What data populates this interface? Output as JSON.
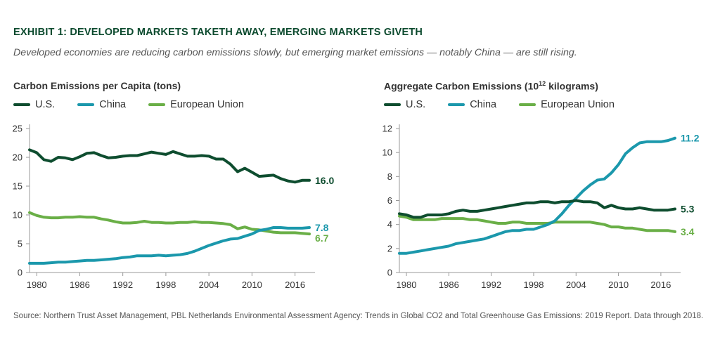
{
  "header": {
    "title": "EXHIBIT 1:  DEVELOPED MARKETS TAKETH AWAY, EMERGING MARKETS GIVETH",
    "subtitle": "Developed economies are reducing carbon emissions slowly, but emerging market emissions — notably China — are still rising."
  },
  "colors": {
    "us": "#0e4d2f",
    "china": "#1b98ac",
    "eu": "#6aaf47"
  },
  "footer": {
    "source": "Source: Northern Trust Asset Management, PBL Netherlands Environmental Assessment Agency: Trends in Global CO2 and Total Greenhouse Gas Emissions: 2019 Report. Data through 2018."
  },
  "chart_data": [
    {
      "type": "line",
      "title": "Carbon Emissions per Capita (tons)",
      "title_main": "Carbon Emissions per Capita (tons)",
      "title_sup": "",
      "title_tail": "",
      "ylim": [
        0,
        25
      ],
      "yticks": [
        0,
        5,
        10,
        15,
        20,
        25
      ],
      "xlim": [
        1979,
        2018
      ],
      "xticks": [
        1980,
        1986,
        1992,
        1998,
        2004,
        2010,
        2016
      ],
      "x": [
        1979,
        1980,
        1981,
        1982,
        1983,
        1984,
        1985,
        1986,
        1987,
        1988,
        1989,
        1990,
        1991,
        1992,
        1993,
        1994,
        1995,
        1996,
        1997,
        1998,
        1999,
        2000,
        2001,
        2002,
        2003,
        2004,
        2005,
        2006,
        2007,
        2008,
        2009,
        2010,
        2011,
        2012,
        2013,
        2014,
        2015,
        2016,
        2017,
        2018
      ],
      "series": [
        {
          "name": "U.S.",
          "key": "us",
          "end_label": "16.0",
          "values": [
            21.3,
            20.8,
            19.6,
            19.3,
            20.0,
            19.9,
            19.6,
            20.1,
            20.7,
            20.8,
            20.3,
            19.9,
            20.0,
            20.2,
            20.3,
            20.3,
            20.6,
            20.9,
            20.7,
            20.5,
            21.0,
            20.6,
            20.2,
            20.2,
            20.3,
            20.2,
            19.7,
            19.7,
            18.8,
            17.5,
            18.1,
            17.4,
            16.7,
            16.8,
            16.9,
            16.3,
            15.9,
            15.7,
            16.0,
            16.0
          ]
        },
        {
          "name": "China",
          "key": "china",
          "end_label": "7.8",
          "values": [
            1.6,
            1.6,
            1.6,
            1.7,
            1.8,
            1.8,
            1.9,
            2.0,
            2.1,
            2.1,
            2.2,
            2.3,
            2.4,
            2.6,
            2.7,
            2.9,
            2.9,
            2.9,
            3.0,
            2.9,
            3.0,
            3.1,
            3.3,
            3.7,
            4.2,
            4.7,
            5.1,
            5.5,
            5.8,
            5.9,
            6.3,
            6.7,
            7.3,
            7.5,
            7.8,
            7.8,
            7.7,
            7.7,
            7.7,
            7.8
          ]
        },
        {
          "name": "European Union",
          "key": "eu",
          "end_label": "6.7",
          "values": [
            10.4,
            9.9,
            9.6,
            9.5,
            9.5,
            9.6,
            9.6,
            9.7,
            9.6,
            9.6,
            9.3,
            9.1,
            8.8,
            8.6,
            8.6,
            8.7,
            8.9,
            8.7,
            8.7,
            8.6,
            8.6,
            8.7,
            8.7,
            8.8,
            8.7,
            8.7,
            8.6,
            8.5,
            8.3,
            7.6,
            7.9,
            7.5,
            7.4,
            7.2,
            7.0,
            6.9,
            6.9,
            6.9,
            6.8,
            6.7
          ]
        }
      ]
    },
    {
      "type": "line",
      "title": "Aggregate Carbon Emissions (10¹² kilograms)",
      "title_main": "Aggregate Carbon Emissions (10",
      "title_sup": "12",
      "title_tail": " kilograms)",
      "ylim": [
        0,
        12
      ],
      "yticks": [
        0,
        2,
        4,
        6,
        8,
        10,
        12
      ],
      "xlim": [
        1979,
        2018
      ],
      "xticks": [
        1980,
        1986,
        1992,
        1998,
        2004,
        2010,
        2016
      ],
      "x": [
        1979,
        1980,
        1981,
        1982,
        1983,
        1984,
        1985,
        1986,
        1987,
        1988,
        1989,
        1990,
        1991,
        1992,
        1993,
        1994,
        1995,
        1996,
        1997,
        1998,
        1999,
        2000,
        2001,
        2002,
        2003,
        2004,
        2005,
        2006,
        2007,
        2008,
        2009,
        2010,
        2011,
        2012,
        2013,
        2014,
        2015,
        2016,
        2017,
        2018
      ],
      "series": [
        {
          "name": "U.S.",
          "key": "us",
          "end_label": "5.3",
          "values": [
            4.9,
            4.8,
            4.6,
            4.6,
            4.8,
            4.8,
            4.8,
            4.9,
            5.1,
            5.2,
            5.1,
            5.1,
            5.2,
            5.3,
            5.4,
            5.5,
            5.6,
            5.7,
            5.8,
            5.8,
            5.9,
            5.9,
            5.8,
            5.9,
            5.9,
            6.0,
            5.9,
            5.9,
            5.8,
            5.4,
            5.6,
            5.4,
            5.3,
            5.3,
            5.4,
            5.3,
            5.2,
            5.2,
            5.2,
            5.3
          ]
        },
        {
          "name": "China",
          "key": "china",
          "end_label": "11.2",
          "values": [
            1.6,
            1.6,
            1.7,
            1.8,
            1.9,
            2.0,
            2.1,
            2.2,
            2.4,
            2.5,
            2.6,
            2.7,
            2.8,
            3.0,
            3.2,
            3.4,
            3.5,
            3.5,
            3.6,
            3.6,
            3.8,
            4.0,
            4.3,
            4.9,
            5.6,
            6.2,
            6.8,
            7.3,
            7.7,
            7.8,
            8.3,
            9.0,
            9.9,
            10.4,
            10.8,
            10.9,
            10.9,
            10.9,
            11.0,
            11.2
          ]
        },
        {
          "name": "European Union",
          "key": "eu",
          "end_label": "3.4",
          "values": [
            4.7,
            4.6,
            4.4,
            4.4,
            4.4,
            4.4,
            4.5,
            4.5,
            4.5,
            4.5,
            4.4,
            4.4,
            4.3,
            4.2,
            4.1,
            4.1,
            4.2,
            4.2,
            4.1,
            4.1,
            4.1,
            4.1,
            4.2,
            4.2,
            4.2,
            4.2,
            4.2,
            4.2,
            4.1,
            4.0,
            3.8,
            3.8,
            3.7,
            3.7,
            3.6,
            3.5,
            3.5,
            3.5,
            3.5,
            3.4
          ]
        }
      ]
    }
  ]
}
